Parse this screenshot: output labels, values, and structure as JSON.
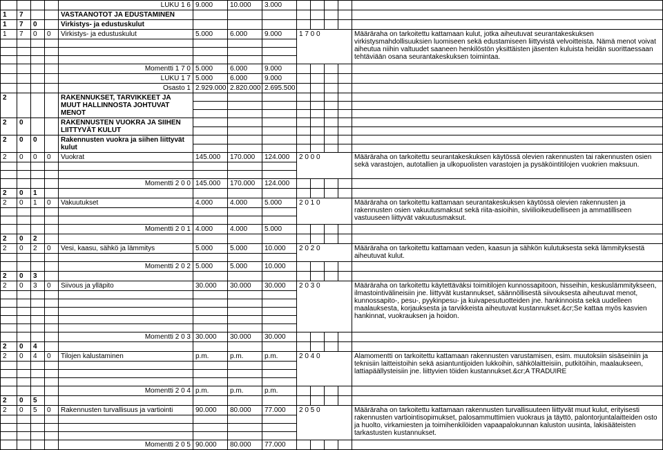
{
  "r0": {
    "label": "LUKU 1 6",
    "v1": "9.000",
    "v2": "10.000",
    "v3": "3.000"
  },
  "r1": {
    "a": "1",
    "b": "7",
    "title": "VASTAANOTOT JA EDUSTAMINEN"
  },
  "r2": {
    "a": "1",
    "b": "7",
    "c": "0",
    "title": "Virkistys- ja edustuskulut"
  },
  "r3": {
    "a": "1",
    "b": "7",
    "c": "0",
    "d": "0",
    "title": "Virkistys- ja edustuskulut",
    "v1": "5.000",
    "v2": "6.000",
    "v3": "9.000",
    "code": "1 7 0 0",
    "desc": "Määräraha on tarkoitettu kattamaan kulut, jotka aiheutuvat seurantakeskuksen virkistysmahdollisuuksien luomiseen sekä edustamiseen liittyvistä velvoitteista. Nämä menot voivat aiheutua niihin valtuudet saaneen henkilöstön yksittäisten jäsenten kuluista heidän suorittaessaan tehtäviään osana seurantakeskuksen toimintaa."
  },
  "r4": {
    "label": "Momentti 1 7 0",
    "v1": "5.000",
    "v2": "6.000",
    "v3": "9.000"
  },
  "r5": {
    "label": "LUKU 1 7",
    "v1": "5.000",
    "v2": "6.000",
    "v3": "9.000"
  },
  "r6": {
    "label": "Osasto 1",
    "v1": "2.929.000",
    "v2": "2.820.000",
    "v3": "2.695.500"
  },
  "r7": {
    "a": "2",
    "title": "RAKENNUKSET, TARVIKKEET JA MUUT HALLINNOSTA JOHTUVAT MENOT"
  },
  "r8": {
    "a": "2",
    "b": "0",
    "title": "RAKENNUSTEN VUOKRA JA SIIHEN LIITTYVÄT KULUT"
  },
  "r9": {
    "a": "2",
    "b": "0",
    "c": "0",
    "title": "Rakennusten vuokra ja siihen liittyvät kulut"
  },
  "r10": {
    "a": "2",
    "b": "0",
    "c": "0",
    "d": "0",
    "title": "Vuokrat",
    "v1": "145.000",
    "v2": "170.000",
    "v3": "124.000",
    "code": "2 0 0 0",
    "desc": "Määräraha on tarkoitettu seurantakeskuksen käytössä olevien rakennusten tai rakennusten osien sekä varastojen, autotallien ja ulkopuolisten varastojen ja pysäköintitilojen vuokrien maksuun."
  },
  "r11": {
    "label": "Momentti 2 0 0",
    "v1": "145.000",
    "v2": "170.000",
    "v3": "124.000"
  },
  "r12": {
    "a": "2",
    "b": "0",
    "c": "1"
  },
  "r13": {
    "a": "2",
    "b": "0",
    "c": "1",
    "d": "0",
    "title": "Vakuutukset",
    "v1": "4.000",
    "v2": "4.000",
    "v3": "5.000",
    "code": "2 0 1 0",
    "desc": "Määräraha on tarkoitettu kattamaan seurantakeskuksen käytössä olevien rakennusten ja rakennusten osien vakuutusmaksut sekä riita-asioihin, siviilioikeudelliseen ja ammatilliseen vastuuseen liittyvät vakuutusmaksut."
  },
  "r14": {
    "label": "Momentti 2 0 1",
    "v1": "4.000",
    "v2": "4.000",
    "v3": "5.000"
  },
  "r15": {
    "a": "2",
    "b": "0",
    "c": "2"
  },
  "r16": {
    "a": "2",
    "b": "0",
    "c": "2",
    "d": "0",
    "title": "Vesi, kaasu, sähkö ja lämmitys",
    "v1": "5.000",
    "v2": "5.000",
    "v3": "10.000",
    "code": "2 0 2 0",
    "desc": "Määräraha on tarkoitettu kattamaan veden, kaasun ja sähkön kulutuksesta sekä lämmityksestä aiheutuvat kulut."
  },
  "r17": {
    "label": "Momentti 2 0 2",
    "v1": "5.000",
    "v2": "5.000",
    "v3": "10.000"
  },
  "r18": {
    "a": "2",
    "b": "0",
    "c": "3"
  },
  "r19": {
    "a": "2",
    "b": "0",
    "c": "3",
    "d": "0",
    "title": "Siivous ja ylläpito",
    "v1": "30.000",
    "v2": "30.000",
    "v3": "30.000",
    "code": "2 0 3 0",
    "desc": "Määräraha on tarkoitettu käytettäväksi toimitilojen kunnossapitoon, hisseihin, keskuslämmitykseen, ilmastointivälineisiin jne. liittyvät kustannukset, säännöllisestä siivouksesta aiheutuvat menot, kunnossapito-, pesu-, pyykinpesu- ja kuivapesutuotteiden jne. hankinnoista sekä uudelleen maalauksesta, korjauksesta ja tarvikkeista aiheutuvat kustannukset.&cr;Se kattaa myös kasvien hankinnat, vuokrauksen ja hoidon."
  },
  "r20": {
    "label": "Momentti 2 0 3",
    "v1": "30.000",
    "v2": "30.000",
    "v3": "30.000"
  },
  "r21": {
    "a": "2",
    "b": "0",
    "c": "4"
  },
  "r22": {
    "a": "2",
    "b": "0",
    "c": "4",
    "d": "0",
    "title": "Tilojen kalustaminen",
    "v1": "p.m.",
    "v2": "p.m.",
    "v3": "p.m.",
    "code": "2 0 4 0",
    "desc": "Alamomentti on tarkoitettu kattamaan rakennusten varustamisen, esim. muutoksiin sisäseiniin ja teknisiin laitteistoihin sekä asiantuntijoiden lukkoihin, sähkölaitteisiin, putkitöihin, maalaukseen, lattiapäällysteisiin jne. liittyvien töiden kustannukset.&cr;A TRADUIRE"
  },
  "r23": {
    "label": "Momentti 2 0 4",
    "v1": "p.m.",
    "v2": "p.m.",
    "v3": "p.m."
  },
  "r24": {
    "a": "2",
    "b": "0",
    "c": "5"
  },
  "r25": {
    "a": "2",
    "b": "0",
    "c": "5",
    "d": "0",
    "title": "Rakennusten turvallisuus ja vartiointi",
    "v1": "90.000",
    "v2": "80.000",
    "v3": "77.000",
    "code": "2 0 5 0",
    "desc": "Määräraha on tarkoitettu kattamaan rakennusten turvallisuuteen liittyvät muut kulut, erityisesti rakennusten vartiointisopimukset, palosammuttimien vuokraus ja täyttö, palontorjuntalaitteiden osto ja huolto, virkamiesten ja toimihenkilöiden vapaapalokunnan kaluston uusinta, lakisääteisten tarkastusten kustannukset."
  },
  "r26": {
    "label": "Momentti 2 0 5",
    "v1": "90.000",
    "v2": "80.000",
    "v3": "77.000"
  }
}
